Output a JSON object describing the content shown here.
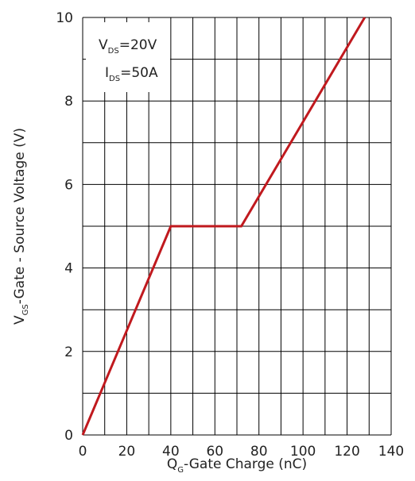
{
  "chart_data": {
    "type": "line",
    "xlabel": {
      "main": "Q",
      "sub": "G",
      "rest": "-Gate Charge (nC)"
    },
    "ylabel": {
      "main": "V",
      "sub": "GS",
      "rest": "-Gate - Source Voltage (V)"
    },
    "xlim": [
      0,
      140
    ],
    "ylim": [
      0,
      10
    ],
    "x_ticks": [
      0,
      20,
      40,
      60,
      80,
      100,
      120,
      140
    ],
    "y_ticks": [
      0,
      2,
      4,
      6,
      8,
      10
    ],
    "grid": true,
    "legend": "none",
    "line_color": "#c0191e",
    "grid_color": "#000000",
    "annotations": [
      {
        "main": "V",
        "sub": "DS",
        "rest": "=20V"
      },
      {
        "main": "I",
        "sub": "DS",
        "rest": "=50A"
      }
    ],
    "series": [
      {
        "x": [
          0,
          40,
          72,
          128
        ],
        "y": [
          0,
          5,
          5,
          10
        ]
      }
    ]
  }
}
